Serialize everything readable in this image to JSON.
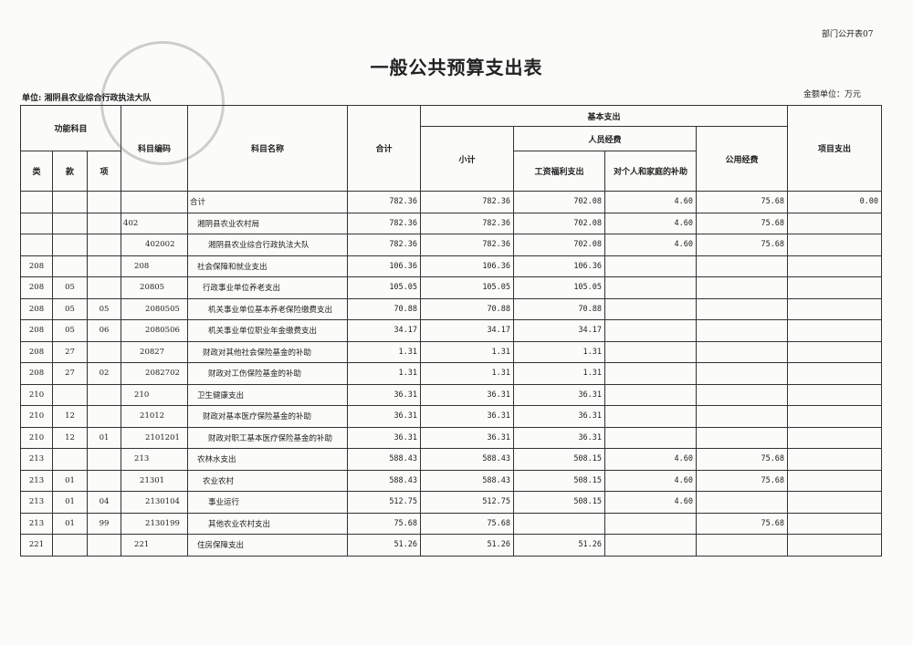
{
  "corner_label": "部门公开表07",
  "title": "一般公共预算支出表",
  "unit_label": "单位: 湘阴县农业综合行政执法大队",
  "currency_label": "金额单位：万元",
  "table": {
    "header": {
      "func_subject": "功能科目",
      "lei": "类",
      "kuan": "款",
      "xiang": "项",
      "code": "科目编码",
      "name": "科目名称",
      "total": "合计",
      "basic": "基本支出",
      "subtotal": "小计",
      "personnel": "人员经费",
      "wages": "工资福利支出",
      "subsidies": "对个人和家庭的补助",
      "public": "公用经费",
      "project": "项目支出"
    },
    "rows": [
      [
        null,
        null,
        null,
        null,
        "合计",
        "782.36",
        "782.36",
        "702.08",
        "4.60",
        "75.68",
        "0.00"
      ],
      [
        null,
        null,
        null,
        "402",
        "湘阴县农业农村局",
        "782.36",
        "782.36",
        "702.08",
        "4.60",
        "75.68",
        null
      ],
      [
        null,
        null,
        null,
        "402002",
        "湘阴县农业综合行政执法大队",
        "782.36",
        "782.36",
        "702.08",
        "4.60",
        "75.68",
        null
      ],
      [
        "208",
        null,
        null,
        "208",
        "社会保障和就业支出",
        "106.36",
        "106.36",
        "106.36",
        null,
        null,
        null
      ],
      [
        "208",
        "05",
        null,
        "20805",
        "行政事业单位养老支出",
        "105.05",
        "105.05",
        "105.05",
        null,
        null,
        null
      ],
      [
        "208",
        "05",
        "05",
        "2080505",
        "机关事业单位基本养老保险缴费支出",
        "70.88",
        "70.88",
        "70.88",
        null,
        null,
        null
      ],
      [
        "208",
        "05",
        "06",
        "2080506",
        "机关事业单位职业年金缴费支出",
        "34.17",
        "34.17",
        "34.17",
        null,
        null,
        null
      ],
      [
        "208",
        "27",
        null,
        "20827",
        "财政对其他社会保险基金的补助",
        "1.31",
        "1.31",
        "1.31",
        null,
        null,
        null
      ],
      [
        "208",
        "27",
        "02",
        "2082702",
        "财政对工伤保险基金的补助",
        "1.31",
        "1.31",
        "1.31",
        null,
        null,
        null
      ],
      [
        "210",
        null,
        null,
        "210",
        "卫生健康支出",
        "36.31",
        "36.31",
        "36.31",
        null,
        null,
        null
      ],
      [
        "210",
        "12",
        null,
        "21012",
        "财政对基本医疗保险基金的补助",
        "36.31",
        "36.31",
        "36.31",
        null,
        null,
        null
      ],
      [
        "210",
        "12",
        "01",
        "2101201",
        "财政对职工基本医疗保险基金的补助",
        "36.31",
        "36.31",
        "36.31",
        null,
        null,
        null
      ],
      [
        "213",
        null,
        null,
        "213",
        "农林水支出",
        "588.43",
        "588.43",
        "508.15",
        "4.60",
        "75.68",
        null
      ],
      [
        "213",
        "01",
        null,
        "21301",
        "农业农村",
        "588.43",
        "588.43",
        "508.15",
        "4.60",
        "75.68",
        null
      ],
      [
        "213",
        "01",
        "04",
        "2130104",
        "事业运行",
        "512.75",
        "512.75",
        "508.15",
        "4.60",
        null,
        null
      ],
      [
        "213",
        "01",
        "99",
        "2130199",
        "其他农业农村支出",
        "75.68",
        "75.68",
        null,
        null,
        "75.68",
        null
      ],
      [
        "221",
        null,
        null,
        "221",
        "住房保障支出",
        "51.26",
        "51.26",
        "51.26",
        null,
        null,
        null
      ]
    ]
  }
}
